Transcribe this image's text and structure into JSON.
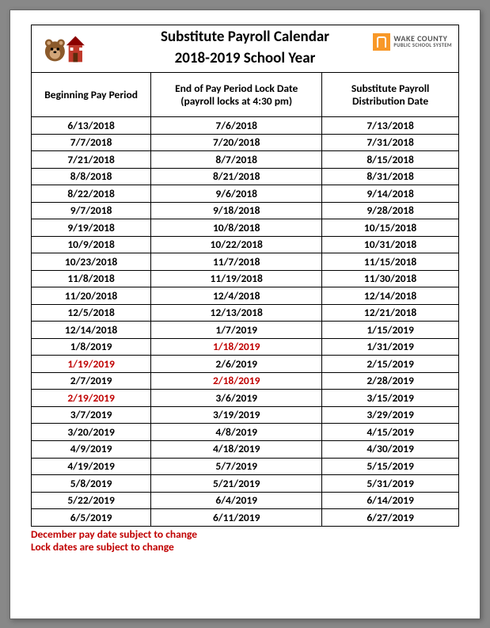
{
  "title_line1": "Substitute Payroll Calendar",
  "title_line2": "2018-2019 School Year",
  "logo": {
    "line1": "WAKE COUNTY",
    "line2": "PUBLIC SCHOOL SYSTEM",
    "bg_color": "#f89828"
  },
  "columns": [
    {
      "label": "Beginning Pay Period",
      "width": "28%"
    },
    {
      "label": "End of Pay Period Lock Date\n(payroll locks at 4:30 pm)",
      "width": "40%"
    },
    {
      "label": "Substitute Payroll\nDistribution Date",
      "width": "32%"
    }
  ],
  "rows": [
    {
      "c1": "6/13/2018",
      "c2": "7/6/2018",
      "c3": "7/13/2018"
    },
    {
      "c1": "7/7/2018",
      "c2": "7/20/2018",
      "c3": "7/31/2018"
    },
    {
      "c1": "7/21/2018",
      "c2": "8/7/2018",
      "c3": "8/15/2018"
    },
    {
      "c1": "8/8/2018",
      "c2": "8/21/2018",
      "c3": "8/31/2018"
    },
    {
      "c1": "8/22/2018",
      "c2": "9/6/2018",
      "c3": "9/14/2018"
    },
    {
      "c1": "9/7/2018",
      "c2": "9/18/2018",
      "c3": "9/28/2018"
    },
    {
      "c1": "9/19/2018",
      "c2": "10/8/2018",
      "c3": "10/15/2018"
    },
    {
      "c1": "10/9/2018",
      "c2": "10/22/2018",
      "c3": "10/31/2018"
    },
    {
      "c1": "10/23/2018",
      "c2": "11/7/2018",
      "c3": "11/15/2018"
    },
    {
      "c1": "11/8/2018",
      "c2": "11/19/2018",
      "c3": "11/30/2018"
    },
    {
      "c1": "11/20/2018",
      "c2": "12/4/2018",
      "c3": "12/14/2018"
    },
    {
      "c1": "12/5/2018",
      "c2": "12/13/2018",
      "c3": "12/21/2018"
    },
    {
      "c1": "12/14/2018",
      "c2": "1/7/2019",
      "c3": "1/15/2019"
    },
    {
      "c1": "1/8/2019",
      "c2": "1/18/2019",
      "c2_red": true,
      "c3": "1/31/2019"
    },
    {
      "c1": "1/19/2019",
      "c1_red": true,
      "c2": "2/6/2019",
      "c3": "2/15/2019"
    },
    {
      "c1": "2/7/2019",
      "c2": "2/18/2019",
      "c2_red": true,
      "c3": "2/28/2019"
    },
    {
      "c1": "2/19/2019",
      "c1_red": true,
      "c2": "3/6/2019",
      "c3": "3/15/2019"
    },
    {
      "c1": "3/7/2019",
      "c2": "3/19/2019",
      "c3": "3/29/2019"
    },
    {
      "c1": "3/20/2019",
      "c2": "4/8/2019",
      "c3": "4/15/2019"
    },
    {
      "c1": "4/9/2019",
      "c2": "4/18/2019",
      "c3": "4/30/2019"
    },
    {
      "c1": "4/19/2019",
      "c2": "5/7/2019",
      "c3": "5/15/2019"
    },
    {
      "c1": "5/8/2019",
      "c2": "5/21/2019",
      "c3": "5/31/2019"
    },
    {
      "c1": "5/22/2019",
      "c2": "6/4/2019",
      "c3": "6/14/2019"
    },
    {
      "c1": "6/5/2019",
      "c2": "6/11/2019",
      "c3": "6/27/2019"
    }
  ],
  "footer": {
    "line1": "December pay date subject to change",
    "line2": "Lock dates are subject to change"
  },
  "colors": {
    "text_black": "#000000",
    "text_red": "#c00000",
    "border": "#000000",
    "page_bg": "#ffffff"
  },
  "font": {
    "family": "Calibri",
    "cell_size_pt": 10,
    "title_size_pt": 14,
    "weight": "bold"
  }
}
